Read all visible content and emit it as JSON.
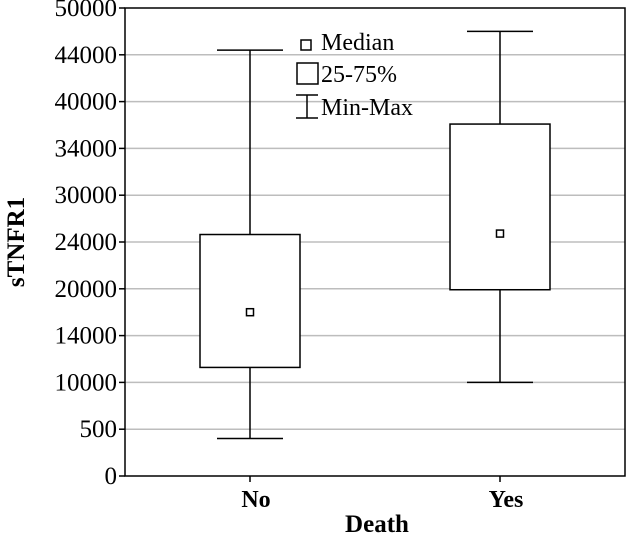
{
  "chart_data": {
    "type": "boxplot",
    "xlabel": "Death",
    "ylabel": "sTNFR1",
    "y_tick_labels": [
      "0",
      "500",
      "10000",
      "14000",
      "20000",
      "24000",
      "30000",
      "34000",
      "40000",
      "44000",
      "50000"
    ],
    "grid": true,
    "legend_position": "top-center",
    "legend": [
      {
        "symbol": "median",
        "label": "Median"
      },
      {
        "symbol": "box",
        "label": "25-75%"
      },
      {
        "symbol": "whisker",
        "label": "Min-Max"
      }
    ],
    "categories": [
      "No",
      "Yes"
    ],
    "boxes": [
      {
        "category": "No",
        "min": 4000,
        "q1": 11600,
        "median": 17500,
        "q3": 25800,
        "max": 45500
      },
      {
        "category": "Yes",
        "min": 10000,
        "q1": 19900,
        "median": 25900,
        "q3": 37600,
        "max": 47500
      }
    ]
  }
}
